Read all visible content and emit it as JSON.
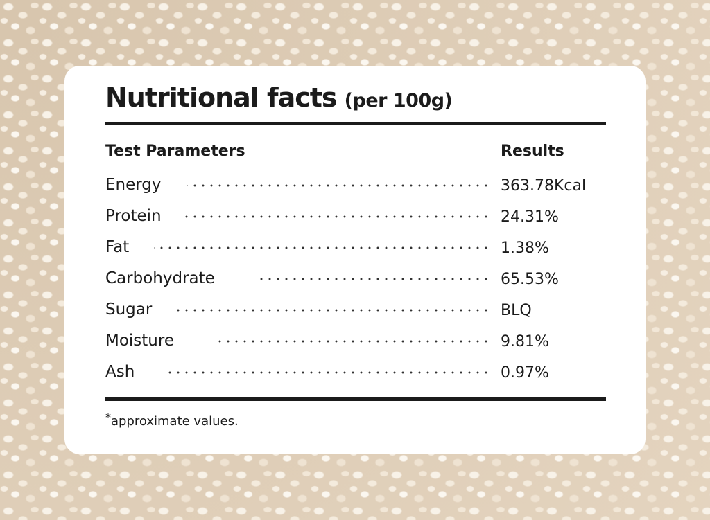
{
  "card": {
    "title": "Nutritional facts",
    "title_suffix": "(per 100g)"
  },
  "table": {
    "header_parameter": "Test Parameters",
    "header_result": "Results",
    "rows": [
      {
        "parameter": "Energy",
        "result": "363.78Kcal"
      },
      {
        "parameter": "Protein",
        "result": "24.31%"
      },
      {
        "parameter": "Fat",
        "result": "1.38%"
      },
      {
        "parameter": "Carbohydrate",
        "result": "65.53%"
      },
      {
        "parameter": "Sugar",
        "result": "BLQ"
      },
      {
        "parameter": "Moisture",
        "result": "9.81%"
      },
      {
        "parameter": "Ash",
        "result": "0.97%"
      }
    ]
  },
  "footnote": {
    "asterisk": "*",
    "text": "approximate values."
  },
  "colors": {
    "text": "#1b1b1b",
    "card_background": "#ffffff",
    "page_background": "#e9dccb"
  }
}
